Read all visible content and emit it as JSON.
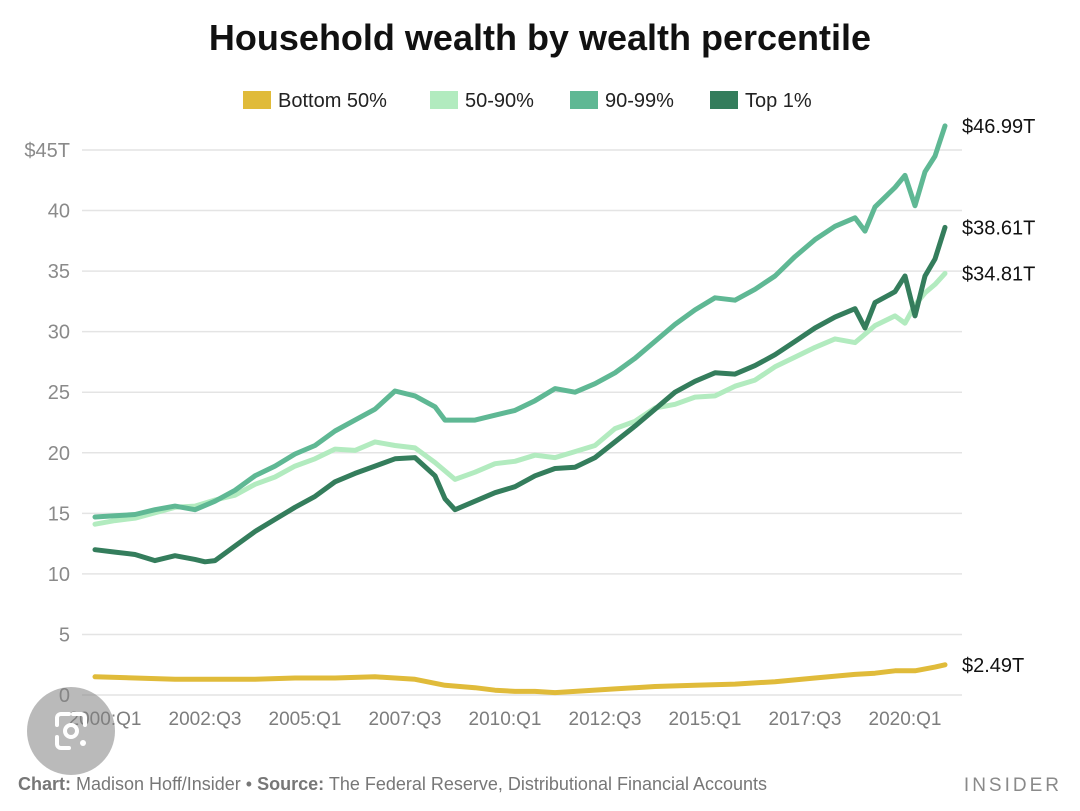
{
  "chart_data": {
    "type": "line",
    "title": "Household wealth by wealth percentile",
    "y_ticks": [
      "$45T",
      "40",
      "35",
      "30",
      "25",
      "20",
      "15",
      "10",
      "5",
      "0"
    ],
    "y_tick_values": [
      45,
      40,
      35,
      30,
      25,
      20,
      15,
      10,
      5,
      0
    ],
    "ylim": [
      0,
      47
    ],
    "x_start": 2000.0,
    "x_end": 2021.25,
    "x_ticks": [
      "2000:Q1",
      "2002:Q3",
      "2005:Q1",
      "2007:Q3",
      "2010:Q1",
      "2012:Q3",
      "2015:Q1",
      "2017:Q3",
      "2020:Q1"
    ],
    "x_tick_values": [
      2000.0,
      2002.5,
      2005.0,
      2007.5,
      2010.0,
      2012.5,
      2015.0,
      2017.5,
      2020.0
    ],
    "grid": true,
    "legend_position": "top",
    "series": [
      {
        "name": "Bottom 50%",
        "color": "#e0bb3a",
        "end_label": "$2.49T",
        "points": [
          [
            2000.0,
            1.5
          ],
          [
            2001.0,
            1.4
          ],
          [
            2002.0,
            1.3
          ],
          [
            2003.0,
            1.3
          ],
          [
            2004.0,
            1.3
          ],
          [
            2005.0,
            1.4
          ],
          [
            2006.0,
            1.4
          ],
          [
            2007.0,
            1.5
          ],
          [
            2008.0,
            1.3
          ],
          [
            2008.75,
            0.8
          ],
          [
            2009.5,
            0.6
          ],
          [
            2010.0,
            0.4
          ],
          [
            2010.5,
            0.3
          ],
          [
            2011.0,
            0.3
          ],
          [
            2011.5,
            0.2
          ],
          [
            2012.0,
            0.3
          ],
          [
            2013.0,
            0.5
          ],
          [
            2014.0,
            0.7
          ],
          [
            2015.0,
            0.8
          ],
          [
            2016.0,
            0.9
          ],
          [
            2017.0,
            1.1
          ],
          [
            2018.0,
            1.4
          ],
          [
            2019.0,
            1.7
          ],
          [
            2019.5,
            1.8
          ],
          [
            2020.0,
            2.0
          ],
          [
            2020.5,
            2.0
          ],
          [
            2021.0,
            2.3
          ],
          [
            2021.25,
            2.49
          ]
        ]
      },
      {
        "name": "50-90%",
        "color": "#b2ebbf",
        "end_label": "$34.81T",
        "points": [
          [
            2000.0,
            14.1
          ],
          [
            2000.5,
            14.4
          ],
          [
            2001.0,
            14.6
          ],
          [
            2002.0,
            15.5
          ],
          [
            2002.5,
            15.6
          ],
          [
            2003.0,
            16.1
          ],
          [
            2003.5,
            16.5
          ],
          [
            2004.0,
            17.4
          ],
          [
            2004.5,
            18.0
          ],
          [
            2005.0,
            18.9
          ],
          [
            2005.5,
            19.5
          ],
          [
            2006.0,
            20.3
          ],
          [
            2006.5,
            20.2
          ],
          [
            2007.0,
            20.9
          ],
          [
            2007.5,
            20.6
          ],
          [
            2008.0,
            20.4
          ],
          [
            2008.5,
            19.2
          ],
          [
            2009.0,
            17.8
          ],
          [
            2009.5,
            18.4
          ],
          [
            2010.0,
            19.1
          ],
          [
            2010.5,
            19.3
          ],
          [
            2011.0,
            19.8
          ],
          [
            2011.5,
            19.6
          ],
          [
            2012.0,
            20.1
          ],
          [
            2012.5,
            20.6
          ],
          [
            2013.0,
            22.0
          ],
          [
            2013.5,
            22.6
          ],
          [
            2014.0,
            23.7
          ],
          [
            2014.5,
            24.0
          ],
          [
            2015.0,
            24.6
          ],
          [
            2015.5,
            24.7
          ],
          [
            2016.0,
            25.5
          ],
          [
            2016.5,
            26.0
          ],
          [
            2017.0,
            27.1
          ],
          [
            2017.5,
            27.9
          ],
          [
            2018.0,
            28.7
          ],
          [
            2018.5,
            29.4
          ],
          [
            2019.0,
            29.1
          ],
          [
            2019.5,
            30.5
          ],
          [
            2020.0,
            31.3
          ],
          [
            2020.25,
            30.7
          ],
          [
            2020.5,
            32.2
          ],
          [
            2020.75,
            33.2
          ],
          [
            2021.0,
            33.9
          ],
          [
            2021.25,
            34.81
          ]
        ]
      },
      {
        "name": "90-99%",
        "color": "#5fb894",
        "end_label": "$46.99T",
        "points": [
          [
            2000.0,
            14.7
          ],
          [
            2000.5,
            14.8
          ],
          [
            2001.0,
            14.9
          ],
          [
            2001.5,
            15.3
          ],
          [
            2002.0,
            15.6
          ],
          [
            2002.5,
            15.3
          ],
          [
            2003.0,
            16.0
          ],
          [
            2003.5,
            16.9
          ],
          [
            2004.0,
            18.1
          ],
          [
            2004.5,
            18.9
          ],
          [
            2005.0,
            19.9
          ],
          [
            2005.5,
            20.6
          ],
          [
            2006.0,
            21.8
          ],
          [
            2006.5,
            22.7
          ],
          [
            2007.0,
            23.6
          ],
          [
            2007.5,
            25.1
          ],
          [
            2008.0,
            24.7
          ],
          [
            2008.5,
            23.8
          ],
          [
            2008.75,
            22.7
          ],
          [
            2009.5,
            22.7
          ],
          [
            2010.0,
            23.1
          ],
          [
            2010.5,
            23.5
          ],
          [
            2011.0,
            24.3
          ],
          [
            2011.5,
            25.3
          ],
          [
            2012.0,
            25.0
          ],
          [
            2012.5,
            25.7
          ],
          [
            2013.0,
            26.6
          ],
          [
            2013.5,
            27.8
          ],
          [
            2014.0,
            29.2
          ],
          [
            2014.5,
            30.6
          ],
          [
            2015.0,
            31.8
          ],
          [
            2015.5,
            32.8
          ],
          [
            2016.0,
            32.6
          ],
          [
            2016.5,
            33.5
          ],
          [
            2017.0,
            34.6
          ],
          [
            2017.5,
            36.2
          ],
          [
            2018.0,
            37.6
          ],
          [
            2018.5,
            38.7
          ],
          [
            2019.0,
            39.4
          ],
          [
            2019.25,
            38.3
          ],
          [
            2019.5,
            40.3
          ],
          [
            2020.0,
            41.9
          ],
          [
            2020.25,
            42.9
          ],
          [
            2020.5,
            40.4
          ],
          [
            2020.75,
            43.2
          ],
          [
            2021.0,
            44.5
          ],
          [
            2021.25,
            46.99
          ]
        ]
      },
      {
        "name": "Top 1%",
        "color": "#347d5c",
        "end_label": "$38.61T",
        "points": [
          [
            2000.0,
            12.0
          ],
          [
            2000.5,
            11.8
          ],
          [
            2001.0,
            11.6
          ],
          [
            2001.5,
            11.1
          ],
          [
            2002.0,
            11.5
          ],
          [
            2002.5,
            11.2
          ],
          [
            2002.75,
            11.0
          ],
          [
            2003.0,
            11.1
          ],
          [
            2003.5,
            12.3
          ],
          [
            2004.0,
            13.5
          ],
          [
            2004.5,
            14.5
          ],
          [
            2005.0,
            15.5
          ],
          [
            2005.5,
            16.4
          ],
          [
            2006.0,
            17.6
          ],
          [
            2006.5,
            18.3
          ],
          [
            2007.0,
            18.9
          ],
          [
            2007.5,
            19.5
          ],
          [
            2008.0,
            19.6
          ],
          [
            2008.5,
            18.1
          ],
          [
            2008.75,
            16.2
          ],
          [
            2009.0,
            15.3
          ],
          [
            2009.5,
            16.0
          ],
          [
            2010.0,
            16.7
          ],
          [
            2010.5,
            17.2
          ],
          [
            2011.0,
            18.1
          ],
          [
            2011.5,
            18.7
          ],
          [
            2012.0,
            18.8
          ],
          [
            2012.5,
            19.6
          ],
          [
            2013.0,
            20.9
          ],
          [
            2013.5,
            22.2
          ],
          [
            2014.0,
            23.6
          ],
          [
            2014.5,
            25.0
          ],
          [
            2015.0,
            25.9
          ],
          [
            2015.5,
            26.6
          ],
          [
            2016.0,
            26.5
          ],
          [
            2016.5,
            27.2
          ],
          [
            2017.0,
            28.1
          ],
          [
            2017.5,
            29.2
          ],
          [
            2018.0,
            30.3
          ],
          [
            2018.5,
            31.2
          ],
          [
            2019.0,
            31.9
          ],
          [
            2019.25,
            30.3
          ],
          [
            2019.5,
            32.4
          ],
          [
            2020.0,
            33.3
          ],
          [
            2020.25,
            34.6
          ],
          [
            2020.5,
            31.3
          ],
          [
            2020.75,
            34.6
          ],
          [
            2021.0,
            36.0
          ],
          [
            2021.25,
            38.61
          ]
        ]
      }
    ]
  },
  "footer": {
    "chart_label": "Chart:",
    "chart_credit": "Madison Hoff/Insider",
    "separator": "•",
    "source_label": "Source:",
    "source_text": "The Federal Reserve, Distributional Financial Accounts"
  },
  "brand": "INSIDER"
}
